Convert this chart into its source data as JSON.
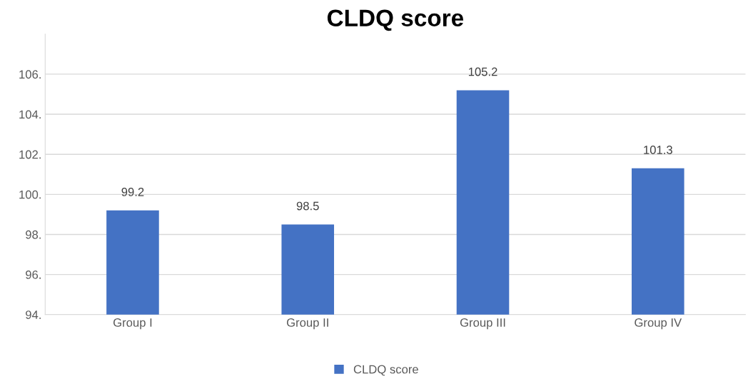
{
  "chart_data": {
    "type": "bar",
    "title": "CLDQ score",
    "categories": [
      "Group I",
      "Group II",
      "Group III",
      "Group IV"
    ],
    "series": [
      {
        "name": "CLDQ score",
        "color": "#4472c4",
        "values": [
          99.2,
          98.5,
          105.2,
          101.3
        ]
      }
    ],
    "ylim": [
      94,
      108
    ],
    "yticks": [
      {
        "value": 94,
        "label": "94."
      },
      {
        "value": 96,
        "label": "96."
      },
      {
        "value": 98,
        "label": "98."
      },
      {
        "value": 100,
        "label": "100."
      },
      {
        "value": 102,
        "label": "102."
      },
      {
        "value": 104,
        "label": "104."
      },
      {
        "value": 106,
        "label": "106."
      }
    ],
    "data_labels": true,
    "grid": "y",
    "legend": "bottom"
  }
}
